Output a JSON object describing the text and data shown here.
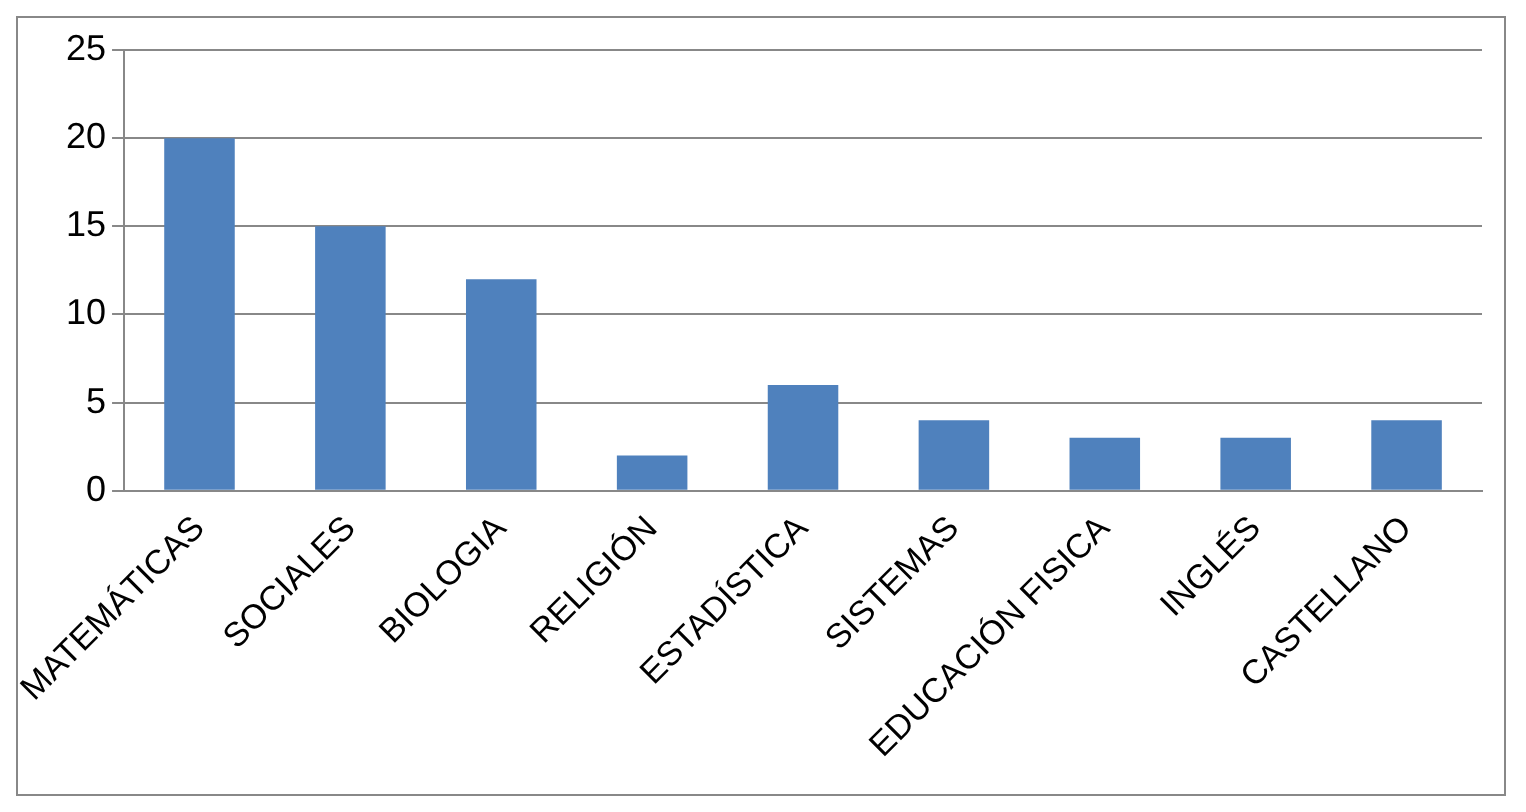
{
  "chart_data": {
    "type": "bar",
    "categories": [
      "MATEMÁTICAS",
      "SOCIALES",
      "BIOLOGIA",
      "RELIGIÓN",
      "ESTADÍSTICA",
      "SISTEMAS",
      "EDUCACIÓN FISICA",
      "INGLÉS",
      "CASTELLANO"
    ],
    "values": [
      20,
      15,
      12,
      2,
      6,
      4,
      3,
      3,
      4
    ],
    "color": "#4f81bd",
    "ylim": [
      0,
      25
    ],
    "yticks": [
      0,
      5,
      10,
      15,
      20,
      25
    ],
    "grid": "y",
    "legend": false
  }
}
